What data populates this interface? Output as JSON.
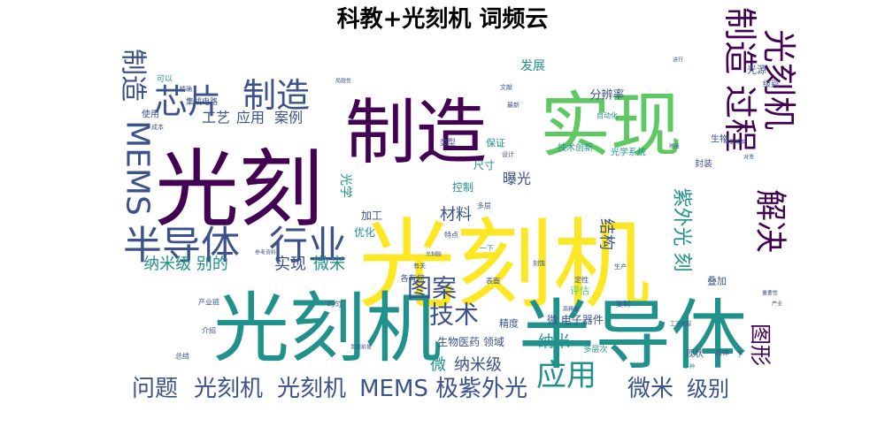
{
  "chart_data": {
    "type": "wordcloud",
    "title": "科教+光刻机 词频云",
    "colormap": [
      "#440154",
      "#3b528b",
      "#21918c",
      "#5ec962",
      "#fde725"
    ],
    "words": [
      {
        "text": "光刻机",
        "weight": 100
      },
      {
        "text": "光刻机",
        "weight": 92
      },
      {
        "text": "半导体",
        "weight": 90
      },
      {
        "text": "光刻",
        "weight": 88
      },
      {
        "text": "制造",
        "weight": 80
      },
      {
        "text": "实现",
        "weight": 80
      },
      {
        "text": "半导体",
        "weight": 50
      },
      {
        "text": "行业",
        "weight": 45
      },
      {
        "text": "芯片",
        "weight": 42
      },
      {
        "text": "制造",
        "weight": 40
      },
      {
        "text": "MEMS",
        "weight": 42
      },
      {
        "text": "制造 过程",
        "weight": 40
      },
      {
        "text": "光刻机",
        "weight": 40
      },
      {
        "text": "解决",
        "weight": 38
      },
      {
        "text": "制造",
        "weight": 34
      },
      {
        "text": "图案",
        "weight": 32
      },
      {
        "text": "应用",
        "weight": 32
      },
      {
        "text": "技术",
        "weight": 30
      },
      {
        "text": "问题",
        "weight": 28
      },
      {
        "text": "光刻机",
        "weight": 28
      },
      {
        "text": "光刻机",
        "weight": 28
      },
      {
        "text": "MEMS",
        "weight": 28
      },
      {
        "text": "极",
        "weight": 28
      },
      {
        "text": "紫外光",
        "weight": 28
      },
      {
        "text": "微米",
        "weight": 28
      },
      {
        "text": "级别",
        "weight": 26
      },
      {
        "text": "图形",
        "weight": 26
      },
      {
        "text": "紫外光 刻",
        "weight": 24
      },
      {
        "text": "工艺",
        "weight": 18
      },
      {
        "text": "应用",
        "weight": 18
      },
      {
        "text": "案例",
        "weight": 18
      },
      {
        "text": "纳米级 别的",
        "weight": 18
      },
      {
        "text": "实现",
        "weight": 18
      },
      {
        "text": "微米",
        "weight": 18
      },
      {
        "text": "材料",
        "weight": 18
      },
      {
        "text": "微",
        "weight": 18
      },
      {
        "text": "纳米级",
        "weight": 18
      },
      {
        "text": "纳米",
        "weight": 18
      },
      {
        "text": "结构",
        "weight": 18
      },
      {
        "text": "曝光",
        "weight": 16
      },
      {
        "text": "分辨率",
        "weight": 14
      },
      {
        "text": "发展",
        "weight": 14
      },
      {
        "text": "光学",
        "weight": 14
      },
      {
        "text": "控制",
        "weight": 12
      },
      {
        "text": "尺寸",
        "weight": 12
      },
      {
        "text": "加工",
        "weight": 12
      },
      {
        "text": "优化",
        "weight": 12
      },
      {
        "text": "微 电子器件",
        "weight": 12
      },
      {
        "text": "生物医药 领域",
        "weight": 12
      },
      {
        "text": "精度",
        "weight": 12
      },
      {
        "text": "评估",
        "weight": 12
      },
      {
        "text": "叠加",
        "weight": 11
      },
      {
        "text": "保证",
        "weight": 12
      },
      {
        "text": "技术创新",
        "weight": 11
      },
      {
        "text": "光学系统",
        "weight": 11
      },
      {
        "text": "封装",
        "weight": 11
      },
      {
        "text": "光源",
        "weight": 12
      },
      {
        "text": "级别",
        "weight": 10
      },
      {
        "text": "现状",
        "weight": 11
      },
      {
        "text": "生物",
        "weight": 10
      },
      {
        "text": "使用",
        "weight": 11
      },
      {
        "text": "可以",
        "weight": 11
      },
      {
        "text": "集成电路",
        "weight": 10
      },
      {
        "text": "类型",
        "weight": 10
      },
      {
        "text": "各有何",
        "weight": 10
      },
      {
        "text": "多层次",
        "weight": 10
      },
      {
        "text": "自动化",
        "weight": 10
      },
      {
        "text": "多层",
        "weight": 10
      },
      {
        "text": "特点",
        "weight": 9
      },
      {
        "text": "表面",
        "weight": 9
      },
      {
        "text": "定性",
        "weight": 9
      },
      {
        "text": "复制",
        "weight": 9
      },
      {
        "text": "总结",
        "weight": 9
      },
      {
        "text": "介绍",
        "weight": 9
      },
      {
        "text": "均匀",
        "weight": 9
      },
      {
        "text": "产业链",
        "weight": 8
      },
      {
        "text": "一下",
        "weight": 9
      },
      {
        "text": "具体",
        "weight": 9
      },
      {
        "text": "下",
        "weight": 9
      },
      {
        "text": "设计",
        "weight": 8
      },
      {
        "text": "成本",
        "weight": 8
      },
      {
        "text": "精确",
        "weight": 8
      },
      {
        "text": "发展前景",
        "weight": 7
      },
      {
        "text": "高精度",
        "weight": 7
      },
      {
        "text": "重要性",
        "weight": 7
      },
      {
        "text": "有关",
        "weight": 8
      },
      {
        "text": "刻蚀",
        "weight": 8
      },
      {
        "text": "对准",
        "weight": 7
      },
      {
        "text": "生产",
        "weight": 8
      },
      {
        "text": "文献",
        "weight": 7
      },
      {
        "text": "参考资料",
        "weight": 7
      },
      {
        "text": "进行",
        "weight": 7
      },
      {
        "text": "产业",
        "weight": 7
      },
      {
        "text": "局限性",
        "weight": 7
      },
      {
        "text": "光刻胶",
        "weight": 7
      },
      {
        "text": "降低成本",
        "weight": 7
      },
      {
        "text": "工艺流程",
        "weight": 7
      },
      {
        "text": "多种",
        "weight": 7
      },
      {
        "text": "最新",
        "weight": 7
      },
      {
        "text": "难度",
        "weight": 7
      }
    ]
  }
}
